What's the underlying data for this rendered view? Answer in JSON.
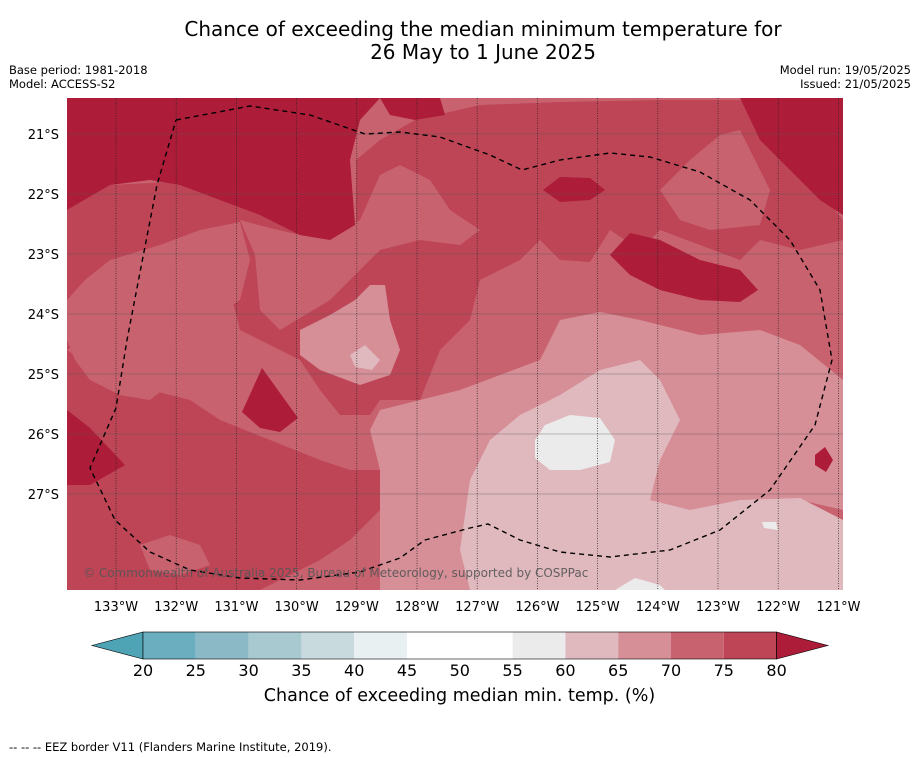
{
  "title_line1": "Chance of exceeding the median minimum temperature for",
  "title_line2": "26 May to 1 June 2025",
  "base_period": "Base period: 1981-2018",
  "model": "Model: ACCESS-S2",
  "model_run": "Model run: 19/05/2025",
  "issued": "Issued: 21/05/2025",
  "copyright": "© Commonwealth of Australia 2025, Bureau of Meteorology, supported by COSPPac",
  "latitude_labels": [
    "21°S",
    "22°S",
    "23°S",
    "24°S",
    "25°S",
    "26°S",
    "27°S"
  ],
  "longitude_labels": [
    "133°W",
    "132°W",
    "131°W",
    "130°W",
    "129°W",
    "128°W",
    "127°W",
    "126°W",
    "125°W",
    "124°W",
    "123°W",
    "122°W",
    "121°W"
  ],
  "colorbar": {
    "ticks": [
      "20",
      "25",
      "30",
      "35",
      "40",
      "45",
      "50",
      "55",
      "60",
      "65",
      "70",
      "75",
      "80"
    ],
    "colors": [
      "#6aaebf",
      "#8bbac6",
      "#a8c9cf",
      "#c9dadf",
      "#e9f0f2",
      "#ffffff",
      "#ffffff",
      "#ebebeb",
      "#e0b9bf",
      "#d68e97",
      "#c9626f",
      "#bd4556"
    ],
    "under_color": "#4ea3b5",
    "over_color": "#ad1c38",
    "label": "Chance of exceeding median min. temp. (%)"
  },
  "map_colors": {
    "c55_60": "#ebebeb",
    "c60_65": "#e0b9bf",
    "c65_70": "#d68e97",
    "c70_75": "#c9626f",
    "c75_80": "#bd4556",
    "c80_plus": "#ad1c38"
  },
  "legend_footer": "--  --  -- EEZ border V11 (Flanders Marine Institute, 2019)."
}
